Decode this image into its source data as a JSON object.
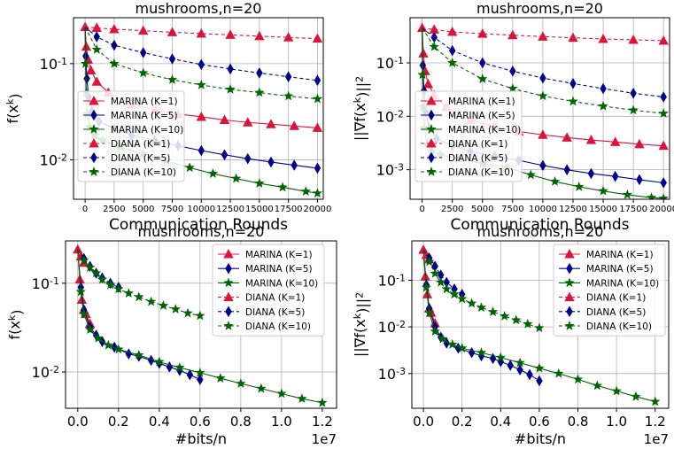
{
  "chart_data": [
    {
      "type": "line",
      "title": "mushrooms,n=20",
      "xlabel": "Communication Rounds",
      "ylabel": "f(x^k)",
      "yscale": "log",
      "xlim": [
        -1000,
        20500
      ],
      "ylim": [
        0.0039,
        0.3
      ],
      "xticks": [
        "0",
        "2500",
        "5000",
        "7500",
        "10000",
        "12500",
        "15000",
        "17500",
        "20000"
      ],
      "xtick_values": [
        0,
        2500,
        5000,
        7500,
        10000,
        12500,
        15000,
        17500,
        20000
      ],
      "yticks": [
        "10^-1",
        "10^-2"
      ],
      "ytick_values": [
        0.1,
        0.01
      ],
      "x_offset": "",
      "grid": true,
      "legend": "lower-left",
      "series": [
        {
          "name": "MARINA (K=1)",
          "color": "#dc143c",
          "marker": "triangle",
          "dash": false,
          "x": [
            0,
            100,
            250,
            500,
            1000,
            2000,
            4000,
            6000,
            8000,
            10000,
            12000,
            14000,
            16000,
            18000,
            20000
          ],
          "y": [
            0.24,
            0.15,
            0.11,
            0.085,
            0.065,
            0.05,
            0.038,
            0.033,
            0.03,
            0.028,
            0.026,
            0.0245,
            0.0235,
            0.0225,
            0.0215
          ]
        },
        {
          "name": "MARINA (K=5)",
          "color": "#00008b",
          "marker": "diamond",
          "dash": false,
          "x": [
            0,
            50,
            150,
            300,
            600,
            1200,
            2500,
            4000,
            6000,
            8000,
            10000,
            12000,
            14000,
            16000,
            18000,
            20000
          ],
          "y": [
            0.24,
            0.12,
            0.07,
            0.045,
            0.032,
            0.025,
            0.021,
            0.018,
            0.016,
            0.014,
            0.0125,
            0.0113,
            0.0103,
            0.0095,
            0.0088,
            0.0082
          ]
        },
        {
          "name": "MARINA (K=10)",
          "color": "#006400",
          "marker": "star",
          "dash": false,
          "x": [
            0,
            30,
            100,
            200,
            400,
            800,
            1500,
            3000,
            5000,
            7000,
            9000,
            11000,
            13000,
            15000,
            17000,
            19000,
            20000
          ],
          "y": [
            0.24,
            0.1,
            0.05,
            0.03,
            0.022,
            0.018,
            0.016,
            0.0135,
            0.0115,
            0.0098,
            0.0083,
            0.0072,
            0.0064,
            0.0057,
            0.0052,
            0.0047,
            0.0045
          ]
        },
        {
          "name": "DIANA (K=1)",
          "color": "#dc143c",
          "marker": "triangle",
          "dash": true,
          "x": [
            0,
            1000,
            2500,
            5000,
            7500,
            10000,
            12500,
            15000,
            17500,
            20000
          ],
          "y": [
            0.24,
            0.235,
            0.228,
            0.22,
            0.212,
            0.205,
            0.199,
            0.193,
            0.187,
            0.182
          ]
        },
        {
          "name": "DIANA (K=5)",
          "color": "#00008b",
          "marker": "diamond",
          "dash": true,
          "x": [
            0,
            1000,
            2500,
            5000,
            7500,
            10000,
            12500,
            15000,
            17500,
            20000
          ],
          "y": [
            0.24,
            0.19,
            0.155,
            0.13,
            0.112,
            0.098,
            0.088,
            0.08,
            0.073,
            0.067
          ]
        },
        {
          "name": "DIANA (K=10)",
          "color": "#006400",
          "marker": "star",
          "dash": true,
          "x": [
            0,
            1000,
            2500,
            5000,
            7500,
            10000,
            12500,
            15000,
            17500,
            20000
          ],
          "y": [
            0.24,
            0.14,
            0.1,
            0.08,
            0.068,
            0.06,
            0.054,
            0.05,
            0.046,
            0.043
          ]
        }
      ]
    },
    {
      "type": "line",
      "title": "mushrooms,n=20",
      "xlabel": "Communication Rounds",
      "ylabel": "||∇f(x^k)||^2",
      "yscale": "log",
      "xlim": [
        -1000,
        20500
      ],
      "ylim": [
        0.00028,
        0.7
      ],
      "xticks": [
        "0",
        "2500",
        "5000",
        "7500",
        "10000",
        "12500",
        "15000",
        "17500",
        "20000"
      ],
      "xtick_values": [
        0,
        2500,
        5000,
        7500,
        10000,
        12500,
        15000,
        17500,
        20000
      ],
      "yticks": [
        "10^-1",
        "10^-2",
        "10^-3"
      ],
      "ytick_values": [
        0.1,
        0.01,
        0.001
      ],
      "x_offset": "",
      "grid": true,
      "legend": "lower-left",
      "series": [
        {
          "name": "MARINA (K=1)",
          "color": "#dc143c",
          "marker": "triangle",
          "dash": false,
          "x": [
            0,
            100,
            250,
            500,
            1000,
            2000,
            4000,
            6000,
            8000,
            10000,
            12000,
            14000,
            16000,
            18000,
            20000
          ],
          "y": [
            0.45,
            0.15,
            0.07,
            0.04,
            0.025,
            0.015,
            0.0085,
            0.0064,
            0.0052,
            0.0045,
            0.004,
            0.0036,
            0.0033,
            0.003,
            0.0028
          ]
        },
        {
          "name": "MARINA (K=5)",
          "color": "#00008b",
          "marker": "diamond",
          "dash": false,
          "x": [
            0,
            50,
            150,
            300,
            600,
            1200,
            2500,
            4000,
            6000,
            8000,
            10000,
            12000,
            14000,
            16000,
            18000,
            20000
          ],
          "y": [
            0.45,
            0.09,
            0.03,
            0.012,
            0.006,
            0.0038,
            0.0028,
            0.0022,
            0.0018,
            0.0015,
            0.0012,
            0.001,
            0.00085,
            0.00075,
            0.00065,
            0.00057
          ]
        },
        {
          "name": "MARINA (K=10)",
          "color": "#006400",
          "marker": "star",
          "dash": false,
          "x": [
            0,
            30,
            100,
            200,
            400,
            800,
            1500,
            3000,
            5000,
            7000,
            9000,
            11000,
            13000,
            15000,
            17000,
            19000,
            20000
          ],
          "y": [
            0.45,
            0.06,
            0.015,
            0.006,
            0.003,
            0.0022,
            0.0019,
            0.0016,
            0.0013,
            0.0011,
            0.0008,
            0.0006,
            0.00048,
            0.0004,
            0.00034,
            0.0003,
            0.00029
          ]
        },
        {
          "name": "DIANA (K=1)",
          "color": "#dc143c",
          "marker": "triangle",
          "dash": true,
          "x": [
            0,
            1000,
            2500,
            5000,
            7500,
            10000,
            12500,
            15000,
            17500,
            20000
          ],
          "y": [
            0.45,
            0.42,
            0.38,
            0.35,
            0.33,
            0.31,
            0.295,
            0.28,
            0.27,
            0.26
          ]
        },
        {
          "name": "DIANA (K=5)",
          "color": "#00008b",
          "marker": "diamond",
          "dash": true,
          "x": [
            0,
            1000,
            2500,
            5000,
            7500,
            10000,
            12500,
            15000,
            17500,
            20000
          ],
          "y": [
            0.45,
            0.3,
            0.17,
            0.1,
            0.07,
            0.052,
            0.041,
            0.033,
            0.027,
            0.023
          ]
        },
        {
          "name": "DIANA (K=10)",
          "color": "#006400",
          "marker": "star",
          "dash": true,
          "x": [
            0,
            1000,
            2500,
            5000,
            7500,
            10000,
            12500,
            15000,
            17500,
            20000
          ],
          "y": [
            0.45,
            0.2,
            0.1,
            0.05,
            0.033,
            0.024,
            0.019,
            0.0155,
            0.013,
            0.0113
          ]
        }
      ]
    },
    {
      "type": "line",
      "title": "mushrooms,n=20",
      "xlabel": "#bits/n",
      "ylabel": "f(x^k)",
      "yscale": "log",
      "xlim": [
        -600000,
        12700000
      ],
      "ylim": [
        0.0039,
        0.3
      ],
      "xticks": [
        "0.0",
        "0.2",
        "0.4",
        "0.6",
        "0.8",
        "1.0",
        "1.2"
      ],
      "xtick_values": [
        0,
        2000000,
        4000000,
        6000000,
        8000000,
        10000000,
        12000000
      ],
      "yticks": [
        "10^-1",
        "10^-2"
      ],
      "ytick_values": [
        0.1,
        0.01
      ],
      "x_offset": "1e7",
      "grid": true,
      "legend": "upper-right",
      "series": [
        {
          "name": "MARINA (K=1)",
          "color": "#dc143c",
          "marker": "triangle",
          "dash": false,
          "x": [
            0,
            100000,
            200000,
            300000,
            400000,
            600000
          ],
          "y": [
            0.24,
            0.11,
            0.065,
            0.05,
            0.045,
            0.035
          ]
        },
        {
          "name": "MARINA (K=5)",
          "color": "#00008b",
          "marker": "diamond",
          "dash": false,
          "x": [
            0,
            150000,
            300000,
            600000,
            900000,
            1200000,
            1800000,
            2500000,
            3000000,
            3600000,
            4000000,
            4500000,
            5000000,
            5500000,
            6000000
          ],
          "y": [
            0.24,
            0.09,
            0.05,
            0.032,
            0.026,
            0.022,
            0.019,
            0.016,
            0.015,
            0.0135,
            0.0125,
            0.0114,
            0.0104,
            0.0093,
            0.0082
          ]
        },
        {
          "name": "MARINA (K=10)",
          "color": "#006400",
          "marker": "star",
          "dash": false,
          "x": [
            0,
            150000,
            300000,
            600000,
            1000000,
            1500000,
            2000000,
            3000000,
            4000000,
            5000000,
            6000000,
            7000000,
            8000000,
            9000000,
            10000000,
            11000000,
            12000000
          ],
          "y": [
            0.24,
            0.08,
            0.045,
            0.03,
            0.024,
            0.02,
            0.018,
            0.0155,
            0.013,
            0.0112,
            0.0098,
            0.0085,
            0.0074,
            0.0065,
            0.0057,
            0.005,
            0.0045
          ]
        },
        {
          "name": "DIANA (K=1)",
          "color": "#dc143c",
          "marker": "triangle",
          "dash": true,
          "x": [
            0,
            150000,
            300000
          ],
          "y": [
            0.24,
            0.2,
            0.17
          ]
        },
        {
          "name": "DIANA (K=5)",
          "color": "#00008b",
          "marker": "diamond",
          "dash": true,
          "x": [
            0,
            300000,
            600000,
            900000,
            1200000,
            1600000,
            2000000
          ],
          "y": [
            0.24,
            0.19,
            0.155,
            0.13,
            0.115,
            0.1,
            0.09
          ]
        },
        {
          "name": "DIANA (K=10)",
          "color": "#006400",
          "marker": "star",
          "dash": true,
          "x": [
            0,
            300000,
            600000,
            900000,
            1200000,
            1600000,
            2000000,
            2500000,
            3000000,
            3600000,
            4200000,
            4800000,
            5400000,
            6000000
          ],
          "y": [
            0.24,
            0.18,
            0.15,
            0.13,
            0.11,
            0.096,
            0.086,
            0.077,
            0.07,
            0.062,
            0.056,
            0.051,
            0.046,
            0.043
          ]
        }
      ]
    },
    {
      "type": "line",
      "title": "mushrooms,n=20",
      "xlabel": "#bits/n",
      "ylabel": "||∇f(x^k)||^2",
      "yscale": "log",
      "xlim": [
        -600000,
        12700000
      ],
      "ylim": [
        0.00018,
        0.7
      ],
      "xticks": [
        "0.0",
        "0.2",
        "0.4",
        "0.6",
        "0.8",
        "1.0",
        "1.2"
      ],
      "xtick_values": [
        0,
        2000000,
        4000000,
        6000000,
        8000000,
        10000000,
        12000000
      ],
      "yticks": [
        "10^-1",
        "10^-2",
        "10^-3"
      ],
      "ytick_values": [
        0.1,
        0.01,
        0.001
      ],
      "x_offset": "1e7",
      "grid": true,
      "legend": "upper-right",
      "series": [
        {
          "name": "MARINA (K=1)",
          "color": "#dc143c",
          "marker": "triangle",
          "dash": false,
          "x": [
            0,
            100000,
            200000,
            300000,
            400000,
            600000
          ],
          "y": [
            0.45,
            0.12,
            0.05,
            0.025,
            0.02,
            0.012
          ]
        },
        {
          "name": "MARINA (K=5)",
          "color": "#00008b",
          "marker": "diamond",
          "dash": false,
          "x": [
            0,
            150000,
            300000,
            600000,
            900000,
            1200000,
            1800000,
            2500000,
            3000000,
            3600000,
            4000000,
            4500000,
            5000000,
            5500000,
            6000000
          ],
          "y": [
            0.45,
            0.08,
            0.025,
            0.01,
            0.006,
            0.0045,
            0.0035,
            0.0028,
            0.0024,
            0.0021,
            0.0018,
            0.0015,
            0.0012,
            0.00095,
            0.0007
          ]
        },
        {
          "name": "MARINA (K=10)",
          "color": "#006400",
          "marker": "star",
          "dash": false,
          "x": [
            0,
            150000,
            300000,
            600000,
            1000000,
            1500000,
            2000000,
            3000000,
            4000000,
            5000000,
            6000000,
            7000000,
            8000000,
            9000000,
            10000000,
            11000000,
            12000000
          ],
          "y": [
            0.45,
            0.07,
            0.02,
            0.008,
            0.0055,
            0.0042,
            0.0035,
            0.0028,
            0.0022,
            0.0017,
            0.0013,
            0.001,
            0.00075,
            0.00055,
            0.00042,
            0.00032,
            0.00025
          ]
        },
        {
          "name": "DIANA (K=1)",
          "color": "#dc143c",
          "marker": "triangle",
          "dash": true,
          "x": [
            0,
            150000,
            300000
          ],
          "y": [
            0.45,
            0.35,
            0.28
          ]
        },
        {
          "name": "DIANA (K=5)",
          "color": "#00008b",
          "marker": "diamond",
          "dash": true,
          "x": [
            0,
            300000,
            600000,
            900000,
            1200000,
            1600000,
            2000000
          ],
          "y": [
            0.45,
            0.3,
            0.2,
            0.13,
            0.09,
            0.065,
            0.05
          ]
        },
        {
          "name": "DIANA (K=10)",
          "color": "#006400",
          "marker": "star",
          "dash": true,
          "x": [
            0,
            300000,
            600000,
            900000,
            1200000,
            1600000,
            2000000,
            2500000,
            3000000,
            3600000,
            4200000,
            4800000,
            5400000,
            6000000
          ],
          "y": [
            0.45,
            0.25,
            0.14,
            0.09,
            0.065,
            0.05,
            0.04,
            0.032,
            0.026,
            0.021,
            0.017,
            0.014,
            0.0115,
            0.0095
          ]
        }
      ]
    }
  ]
}
